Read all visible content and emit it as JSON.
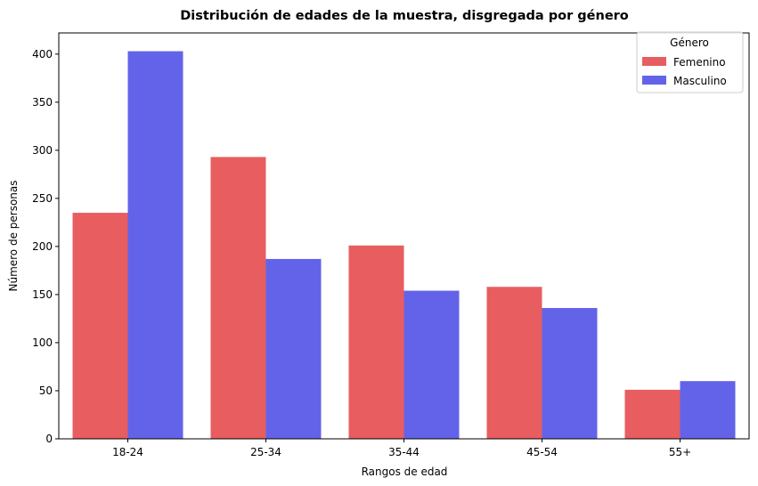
{
  "chart_data": {
    "type": "bar",
    "title": "Distribución de edades de la muestra, disgregada por género",
    "xlabel": "Rangos de edad",
    "ylabel": "Número de personas",
    "categories": [
      "18-24",
      "25-34",
      "35-44",
      "45-54",
      "55+"
    ],
    "series": [
      {
        "name": "Femenino",
        "color": "#e85d5f",
        "values": [
          235,
          293,
          201,
          158,
          51
        ]
      },
      {
        "name": "Masculino",
        "color": "#6363e9",
        "values": [
          403,
          187,
          154,
          136,
          60
        ]
      }
    ],
    "ylim": [
      0,
      422
    ],
    "yticks": [
      0,
      50,
      100,
      150,
      200,
      250,
      300,
      350,
      400
    ],
    "legend": {
      "title": "Género",
      "position": "top-right"
    },
    "grid": false
  }
}
